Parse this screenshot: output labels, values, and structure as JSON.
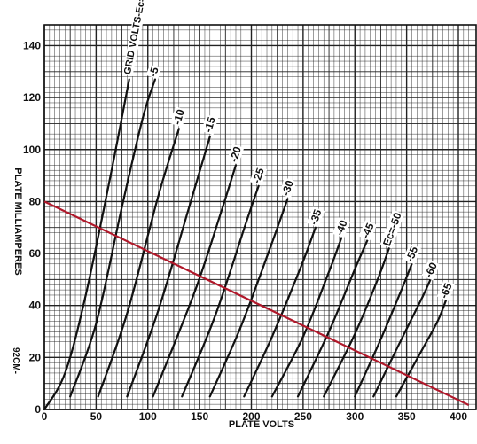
{
  "chart_data": {
    "type": "line",
    "xlabel": "PLATE VOLTS",
    "ylabel": "PLATE MILLIAMPERES",
    "xlim": [
      0,
      410
    ],
    "ylim": [
      0,
      148
    ],
    "x_ticks": [
      "0",
      "50",
      "100",
      "150",
      "200",
      "250",
      "300",
      "350",
      "400"
    ],
    "y_ticks": [
      "0",
      "20",
      "40",
      "60",
      "80",
      "100",
      "120",
      "140"
    ],
    "grid": true,
    "side_label": "92CM-",
    "series": [
      {
        "name": "GRID VOLTS-Ec=0",
        "points": [
          [
            0,
            0
          ],
          [
            20,
            14
          ],
          [
            40,
            44
          ],
          [
            65,
            92
          ],
          [
            82,
            127
          ]
        ]
      },
      {
        "name": "-5",
        "points": [
          [
            25,
            5
          ],
          [
            50,
            33
          ],
          [
            75,
            78
          ],
          [
            95,
            112
          ],
          [
            107,
            127
          ]
        ]
      },
      {
        "name": "-10",
        "points": [
          [
            52,
            5
          ],
          [
            80,
            37
          ],
          [
            110,
            82
          ],
          [
            130,
            108
          ]
        ]
      },
      {
        "name": "-15",
        "points": [
          [
            80,
            5
          ],
          [
            110,
            38
          ],
          [
            140,
            78
          ],
          [
            160,
            105
          ]
        ]
      },
      {
        "name": "-20",
        "points": [
          [
            105,
            5
          ],
          [
            145,
            45
          ],
          [
            170,
            75
          ],
          [
            185,
            94
          ]
        ]
      },
      {
        "name": "-25",
        "points": [
          [
            133,
            5
          ],
          [
            165,
            36
          ],
          [
            195,
            72
          ],
          [
            207,
            86
          ]
        ]
      },
      {
        "name": "-30",
        "points": [
          [
            160,
            5
          ],
          [
            190,
            32
          ],
          [
            218,
            62
          ],
          [
            235,
            81
          ]
        ]
      },
      {
        "name": "-35",
        "points": [
          [
            193,
            5
          ],
          [
            220,
            28
          ],
          [
            248,
            55
          ],
          [
            262,
            70
          ]
        ]
      },
      {
        "name": "-40",
        "points": [
          [
            220,
            5
          ],
          [
            250,
            28
          ],
          [
            275,
            53
          ],
          [
            287,
            66
          ]
        ]
      },
      {
        "name": "-45",
        "points": [
          [
            245,
            5
          ],
          [
            275,
            30
          ],
          [
            300,
            54
          ],
          [
            312,
            65
          ]
        ]
      },
      {
        "name": "Ec=-50",
        "points": [
          [
            270,
            5
          ],
          [
            300,
            29
          ],
          [
            322,
            50
          ],
          [
            333,
            62
          ]
        ]
      },
      {
        "name": "-55",
        "points": [
          [
            300,
            5
          ],
          [
            325,
            27
          ],
          [
            345,
            46
          ],
          [
            355,
            56
          ]
        ]
      },
      {
        "name": "-60",
        "points": [
          [
            318,
            5
          ],
          [
            345,
            27
          ],
          [
            365,
            43
          ],
          [
            373,
            50
          ]
        ]
      },
      {
        "name": "-65",
        "points": [
          [
            340,
            5
          ],
          [
            365,
            23
          ],
          [
            380,
            34
          ],
          [
            388,
            42
          ]
        ]
      }
    ],
    "load_line": {
      "points": [
        [
          0,
          80
        ],
        [
          410,
          0
        ]
      ],
      "color": "#b0182a"
    }
  }
}
